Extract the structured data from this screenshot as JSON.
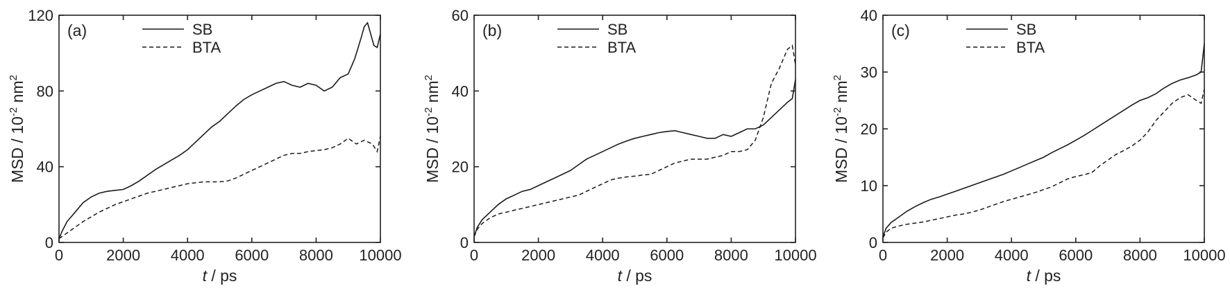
{
  "chart_data": [
    {
      "type": "line",
      "panel_label": "(a)",
      "xlabel_italic": "t",
      "xlabel_rest": " / ps",
      "ylabel_main": "MSD / 10",
      "ylabel_exp": "-2",
      "ylabel_unit": " nm",
      "ylabel_unit_exp": "2",
      "xlim": [
        0,
        10000
      ],
      "ylim": [
        0,
        120
      ],
      "xticks": [
        0,
        2000,
        4000,
        6000,
        8000,
        10000
      ],
      "yticks": [
        0,
        40,
        80,
        120
      ],
      "legend_position": "top-center",
      "series": [
        {
          "name": "SB",
          "style": "solid",
          "x": [
            0,
            100,
            250,
            500,
            750,
            1000,
            1250,
            1500,
            1750,
            2000,
            2250,
            2500,
            2750,
            3000,
            3250,
            3500,
            3750,
            4000,
            4250,
            4500,
            4750,
            5000,
            5250,
            5500,
            5750,
            6000,
            6250,
            6500,
            6750,
            7000,
            7250,
            7500,
            7750,
            8000,
            8250,
            8500,
            8750,
            9000,
            9200,
            9400,
            9500,
            9600,
            9700,
            9800,
            9900,
            10000
          ],
          "y": [
            2,
            6,
            11,
            16,
            21,
            24,
            26,
            27,
            27.5,
            28,
            30,
            32.5,
            35.5,
            38.5,
            41,
            43.5,
            46,
            49,
            53,
            57,
            61,
            64,
            68,
            72,
            75.5,
            78,
            80,
            82,
            84,
            85,
            83,
            82,
            84,
            83,
            80,
            82,
            87,
            89,
            97,
            108,
            114,
            116,
            110,
            104,
            103,
            110
          ]
        },
        {
          "name": "BTA",
          "style": "dashed",
          "x": [
            0,
            250,
            500,
            750,
            1000,
            1250,
            1500,
            1750,
            2000,
            2250,
            2500,
            2750,
            3000,
            3250,
            3500,
            3750,
            4000,
            4250,
            4500,
            4750,
            5000,
            5250,
            5500,
            5750,
            6000,
            6250,
            6500,
            6750,
            7000,
            7250,
            7500,
            7750,
            8000,
            8250,
            8500,
            8750,
            9000,
            9250,
            9500,
            9750,
            9900,
            10000
          ],
          "y": [
            2,
            5,
            8,
            11,
            13.5,
            16,
            18,
            20,
            21.5,
            23,
            24.5,
            26,
            27,
            28,
            29,
            30,
            31,
            31.5,
            32,
            32,
            32,
            32.5,
            34,
            36,
            38,
            40,
            42,
            44,
            46,
            47,
            47,
            48,
            48.5,
            49,
            50,
            52,
            55,
            52,
            54,
            52,
            48,
            56
          ]
        }
      ]
    },
    {
      "type": "line",
      "panel_label": "(b)",
      "xlabel_italic": "t",
      "xlabel_rest": " / ps",
      "ylabel_main": "MSD / 10",
      "ylabel_exp": "-2",
      "ylabel_unit": " nm",
      "ylabel_unit_exp": "2",
      "xlim": [
        0,
        10000
      ],
      "ylim": [
        0,
        60
      ],
      "xticks": [
        0,
        2000,
        4000,
        6000,
        8000,
        10000
      ],
      "yticks": [
        0,
        20,
        40,
        60
      ],
      "legend_position": "top-center",
      "series": [
        {
          "name": "SB",
          "style": "solid",
          "x": [
            0,
            100,
            250,
            500,
            750,
            1000,
            1250,
            1500,
            1750,
            2000,
            2250,
            2500,
            2750,
            3000,
            3250,
            3500,
            3750,
            4000,
            4250,
            4500,
            4750,
            5000,
            5250,
            5500,
            5750,
            6000,
            6250,
            6500,
            6750,
            7000,
            7250,
            7500,
            7750,
            8000,
            8250,
            8500,
            8750,
            9000,
            9250,
            9500,
            9750,
            9900,
            10000
          ],
          "y": [
            1.5,
            4,
            6,
            8,
            10,
            11.5,
            12.5,
            13.5,
            14,
            15,
            16,
            17,
            18,
            19,
            20.5,
            22,
            23,
            24,
            25,
            26,
            26.8,
            27.5,
            28,
            28.5,
            29,
            29.3,
            29.5,
            29,
            28.5,
            28,
            27.5,
            27.5,
            28.5,
            28,
            29,
            30,
            30,
            31,
            33,
            35,
            37,
            38,
            43
          ]
        },
        {
          "name": "BTA",
          "style": "dashed",
          "x": [
            0,
            100,
            250,
            500,
            750,
            1000,
            1250,
            1500,
            1750,
            2000,
            2250,
            2500,
            2750,
            3000,
            3250,
            3500,
            3750,
            4000,
            4250,
            4500,
            4750,
            5000,
            5250,
            5500,
            5750,
            6000,
            6250,
            6500,
            6750,
            7000,
            7250,
            7500,
            7750,
            8000,
            8250,
            8500,
            8750,
            9000,
            9250,
            9500,
            9750,
            9900,
            10000
          ],
          "y": [
            1.5,
            3.5,
            5,
            6.5,
            7.5,
            8,
            8.5,
            9,
            9.5,
            10,
            10.5,
            11,
            11.5,
            12,
            12.5,
            13.5,
            14.5,
            15.5,
            16.5,
            17,
            17.3,
            17.5,
            17.8,
            18,
            19,
            20,
            21,
            21.5,
            22,
            22,
            22,
            22.5,
            23,
            24,
            24,
            24.5,
            27,
            33,
            42,
            46,
            51,
            52,
            47
          ]
        }
      ]
    },
    {
      "type": "line",
      "panel_label": "(c)",
      "xlabel_italic": "t",
      "xlabel_rest": " / ps",
      "ylabel_main": "MSD / 10",
      "ylabel_exp": "-2",
      "ylabel_unit": " nm",
      "ylabel_unit_exp": "2",
      "xlim": [
        0,
        10000
      ],
      "ylim": [
        0,
        40
      ],
      "xticks": [
        0,
        2000,
        4000,
        6000,
        8000,
        10000
      ],
      "yticks": [
        0,
        10,
        20,
        30,
        40
      ],
      "legend_position": "top-center",
      "series": [
        {
          "name": "SB",
          "style": "solid",
          "x": [
            0,
            100,
            250,
            500,
            750,
            1000,
            1250,
            1500,
            1750,
            2000,
            2250,
            2500,
            2750,
            3000,
            3250,
            3500,
            3750,
            4000,
            4250,
            4500,
            4750,
            5000,
            5250,
            5500,
            5750,
            6000,
            6250,
            6500,
            6750,
            7000,
            7250,
            7500,
            7750,
            8000,
            8250,
            8500,
            8750,
            9000,
            9250,
            9500,
            9750,
            9900,
            10000
          ],
          "y": [
            1,
            2.5,
            3.5,
            4.5,
            5.5,
            6.3,
            7,
            7.6,
            8,
            8.5,
            9,
            9.5,
            10,
            10.5,
            11,
            11.5,
            12,
            12.6,
            13.2,
            13.8,
            14.4,
            15,
            15.8,
            16.5,
            17.2,
            18,
            18.8,
            19.7,
            20.6,
            21.5,
            22.4,
            23.3,
            24.2,
            25,
            25.5,
            26.2,
            27.2,
            28,
            28.6,
            29,
            29.5,
            30,
            35
          ]
        },
        {
          "name": "BTA",
          "style": "dashed",
          "x": [
            0,
            100,
            250,
            500,
            750,
            1000,
            1250,
            1500,
            1750,
            2000,
            2250,
            2500,
            2750,
            3000,
            3250,
            3500,
            3750,
            4000,
            4250,
            4500,
            4750,
            5000,
            5250,
            5500,
            5750,
            6000,
            6250,
            6500,
            6750,
            7000,
            7250,
            7500,
            7750,
            8000,
            8250,
            8500,
            8750,
            9000,
            9250,
            9500,
            9750,
            9900,
            10000
          ],
          "y": [
            0.8,
            1.8,
            2.5,
            2.9,
            3.2,
            3.4,
            3.6,
            3.9,
            4.2,
            4.5,
            4.8,
            5,
            5.3,
            5.7,
            6.2,
            6.7,
            7.2,
            7.6,
            8,
            8.4,
            8.8,
            9.3,
            9.8,
            10.5,
            11.2,
            11.6,
            11.9,
            12.3,
            13.5,
            14.5,
            15.5,
            16.2,
            17,
            18,
            19.5,
            21.5,
            23,
            24.5,
            25.5,
            26,
            25,
            24.5,
            27
          ]
        }
      ]
    }
  ]
}
